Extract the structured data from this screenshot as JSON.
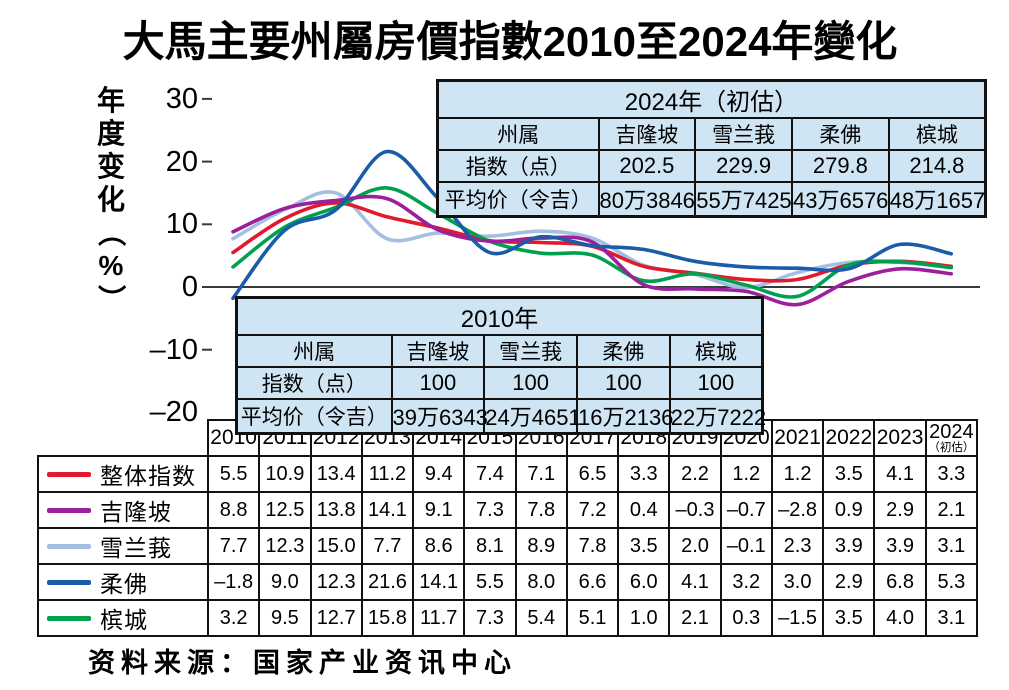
{
  "title": "大馬主要州屬房價指數2010至2024年變化",
  "source": "资料来源：国家产业资讯中心",
  "chart_data": {
    "type": "line",
    "ylabel": "年度变化（%）",
    "ylim": [
      -20,
      30
    ],
    "grid": false,
    "legend_position": "left-table",
    "y_ticks": [
      {
        "label": "30",
        "value": 30
      },
      {
        "label": "20",
        "value": 20
      },
      {
        "label": "10",
        "value": 10
      },
      {
        "label": "0",
        "value": 0
      },
      {
        "label": "–10",
        "value": -10
      },
      {
        "label": "–20",
        "value": -20
      }
    ],
    "x_labels": [
      "2010",
      "2011",
      "2012",
      "2013",
      "2014",
      "2015",
      "2016",
      "2017",
      "2018",
      "2019",
      "2020",
      "2021",
      "2022",
      "2023",
      "2024"
    ],
    "x_last_note": "（初估）",
    "series": [
      {
        "name": "整体指数",
        "color": "#e3192d",
        "values": [
          5.5,
          10.9,
          13.4,
          11.2,
          9.4,
          7.4,
          7.1,
          6.5,
          3.3,
          2.2,
          1.2,
          1.2,
          3.5,
          4.1,
          3.3
        ]
      },
      {
        "name": "吉隆坡",
        "color": "#9c1f9c",
        "values": [
          8.8,
          12.5,
          13.8,
          14.1,
          9.1,
          7.3,
          7.8,
          7.2,
          0.4,
          -0.3,
          -0.7,
          -2.8,
          0.9,
          2.9,
          2.1
        ]
      },
      {
        "name": "雪兰莪",
        "color": "#a6bfe0",
        "values": [
          7.7,
          12.3,
          15.0,
          7.7,
          8.6,
          8.1,
          8.9,
          7.8,
          3.5,
          2.0,
          -0.1,
          2.3,
          3.9,
          3.9,
          3.1
        ]
      },
      {
        "name": "柔佛",
        "color": "#1a5ca8",
        "values": [
          -1.8,
          9.0,
          12.3,
          21.6,
          14.1,
          5.5,
          8.0,
          6.6,
          6.0,
          4.1,
          3.2,
          3.0,
          2.9,
          6.8,
          5.3
        ]
      },
      {
        "name": "槟城",
        "color": "#00a04e",
        "values": [
          3.2,
          9.5,
          12.7,
          15.8,
          11.7,
          7.3,
          5.4,
          5.1,
          1.0,
          2.1,
          0.3,
          -1.5,
          3.5,
          4.0,
          3.1
        ]
      }
    ]
  },
  "table_2024": {
    "title": "2024年（初估）",
    "corner": "州属",
    "columns": [
      "吉隆坡",
      "雪兰莪",
      "柔佛",
      "槟城"
    ],
    "rows": [
      {
        "label": "指数（点）",
        "values": [
          "202.5",
          "229.9",
          "279.8",
          "214.8"
        ]
      },
      {
        "label": "平均价（令吉）",
        "values": [
          "80万3846",
          "55万7425",
          "43万6576",
          "48万1657"
        ]
      }
    ]
  },
  "table_2010": {
    "title": "2010年",
    "corner": "州属",
    "columns": [
      "吉隆坡",
      "雪兰莪",
      "柔佛",
      "槟城"
    ],
    "rows": [
      {
        "label": "指数（点）",
        "values": [
          "100",
          "100",
          "100",
          "100"
        ]
      },
      {
        "label": "平均价（令吉）",
        "values": [
          "39万6343",
          "24万4651",
          "16万2136",
          "22万7222"
        ]
      }
    ]
  }
}
